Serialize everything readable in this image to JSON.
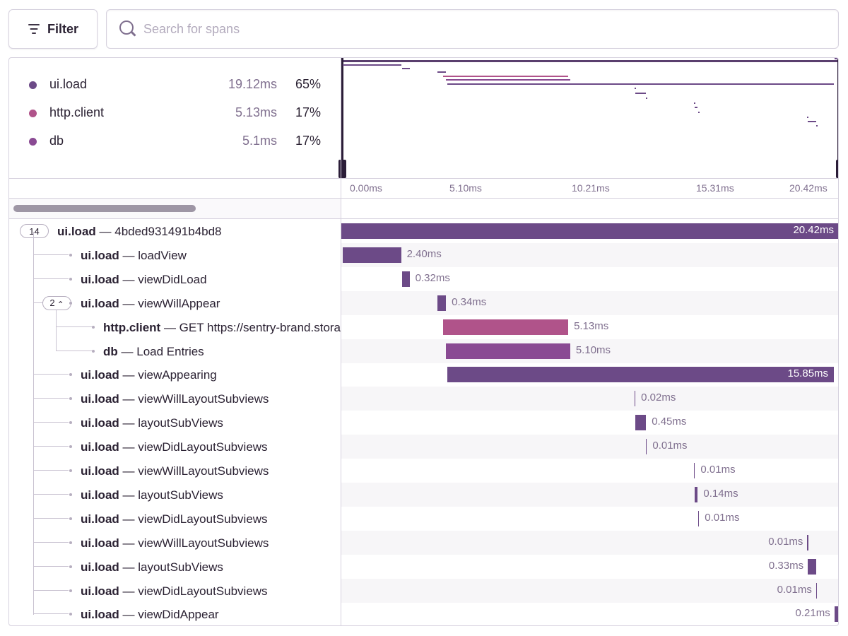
{
  "toolbar": {
    "filter_label": "Filter",
    "search_placeholder": "Search for spans"
  },
  "ops_breakdown": [
    {
      "name": "ui.load",
      "duration": "19.12ms",
      "percent": "65%",
      "color": "#6c4a87"
    },
    {
      "name": "http.client",
      "duration": "5.13ms",
      "percent": "17%",
      "color": "#b0538a"
    },
    {
      "name": "db",
      "duration": "5.1ms",
      "percent": "17%",
      "color": "#8a4a93"
    }
  ],
  "timeline_ticks": [
    "0.00ms",
    "5.10ms",
    "10.21ms",
    "15.31ms",
    "20.42ms"
  ],
  "trace_total_ms": 20.42,
  "root": {
    "children_count": "14",
    "op": "ui.load",
    "description": "4bded931491b4bd8",
    "duration": "20.42ms",
    "start_ms": 0,
    "duration_ms": 20.42
  },
  "spans": [
    {
      "op": "ui.load",
      "description": "loadView",
      "duration": "2.40ms",
      "start_ms": 0.05,
      "duration_ms": 2.4,
      "color": "#6c4a87"
    },
    {
      "op": "ui.load",
      "description": "viewDidLoad",
      "duration": "0.32ms",
      "start_ms": 2.48,
      "duration_ms": 0.32,
      "color": "#6c4a87"
    },
    {
      "op": "ui.load",
      "description": "viewWillAppear",
      "duration": "0.34ms",
      "start_ms": 3.95,
      "duration_ms": 0.34,
      "color": "#6c4a87",
      "children_count": "2"
    },
    {
      "op": "http.client",
      "description": "GET https://sentry-brand.storage.googleapis.com/",
      "duration": "5.13ms",
      "start_ms": 4.17,
      "duration_ms": 5.13,
      "color": "#b0538a"
    },
    {
      "op": "db",
      "description": "Load Entries",
      "duration": "5.10ms",
      "start_ms": 4.28,
      "duration_ms": 5.1,
      "color": "#8a4a93"
    },
    {
      "op": "ui.load",
      "description": "viewAppearing",
      "duration": "15.85ms",
      "start_ms": 4.34,
      "duration_ms": 15.85,
      "color": "#6c4a87"
    },
    {
      "op": "ui.load",
      "description": "viewWillLayoutSubviews",
      "duration": "0.02ms",
      "start_ms": 12.01,
      "duration_ms": 0.02,
      "color": "#6c4a87"
    },
    {
      "op": "ui.load",
      "description": "layoutSubViews",
      "duration": "0.45ms",
      "start_ms": 12.04,
      "duration_ms": 0.45,
      "color": "#6c4a87"
    },
    {
      "op": "ui.load",
      "description": "viewDidLayoutSubviews",
      "duration": "0.01ms",
      "start_ms": 12.48,
      "duration_ms": 0.01,
      "color": "#6c4a87"
    },
    {
      "op": "ui.load",
      "description": "viewWillLayoutSubviews",
      "duration": "0.01ms",
      "start_ms": 14.45,
      "duration_ms": 0.01,
      "color": "#6c4a87"
    },
    {
      "op": "ui.load",
      "description": "layoutSubViews",
      "duration": "0.14ms",
      "start_ms": 14.47,
      "duration_ms": 0.14,
      "color": "#6c4a87"
    },
    {
      "op": "ui.load",
      "description": "viewDidLayoutSubviews",
      "duration": "0.01ms",
      "start_ms": 14.62,
      "duration_ms": 0.01,
      "color": "#6c4a87"
    },
    {
      "op": "ui.load",
      "description": "viewWillLayoutSubviews",
      "duration": "0.01ms",
      "start_ms": 19.1,
      "duration_ms": 0.01,
      "color": "#6c4a87"
    },
    {
      "op": "ui.load",
      "description": "layoutSubViews",
      "duration": "0.33ms",
      "start_ms": 19.12,
      "duration_ms": 0.33,
      "color": "#6c4a87"
    },
    {
      "op": "ui.load",
      "description": "viewDidLayoutSubviews",
      "duration": "0.01ms",
      "start_ms": 19.46,
      "duration_ms": 0.01,
      "color": "#6c4a87"
    },
    {
      "op": "ui.load",
      "description": "viewDidAppear",
      "duration": "0.21ms",
      "start_ms": 20.21,
      "duration_ms": 0.21,
      "color": "#6c4a87"
    }
  ]
}
